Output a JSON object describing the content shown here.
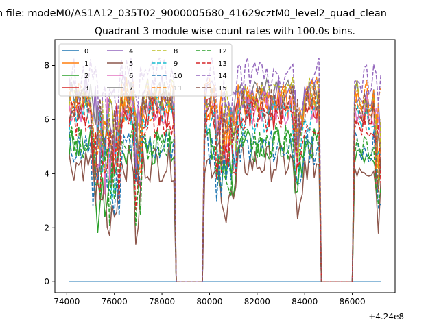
{
  "suptitle": "n file: modeM0/AS1A12_035T02_9000005680_41629cztM0_level2_quad_clean",
  "chart_data": {
    "type": "line",
    "title": "Quadrant 3 module wise count rates with 100.0s bins.",
    "xlabel": "",
    "ylabel": "",
    "x_offset_label": "+4.24e8",
    "xlim": [
      73500,
      87800
    ],
    "ylim": [
      -0.4,
      8.95
    ],
    "xticks": [
      74000,
      76000,
      78000,
      80000,
      82000,
      84000,
      86000
    ],
    "xtick_labels": [
      "74000",
      "76000",
      "78000",
      "80000",
      "82000",
      "84000",
      "86000"
    ],
    "yticks": [
      0,
      2,
      4,
      6,
      8
    ],
    "ytick_labels": [
      "0",
      "2",
      "4",
      "6",
      "8"
    ],
    "grid": false,
    "legend_position": "top-left",
    "legend_columns": 4,
    "gaps": [
      [
        78500,
        79800
      ],
      [
        84600,
        86050
      ]
    ],
    "x_start": 74100,
    "x_end": 87200,
    "series": [
      {
        "name": "0",
        "color": "#1f77b4",
        "dash": "solid",
        "level": 0,
        "seed": 1
      },
      {
        "name": "1",
        "color": "#ff7f0e",
        "dash": "solid",
        "level": 6.6,
        "seed": 2
      },
      {
        "name": "2",
        "color": "#2ca02c",
        "dash": "solid",
        "level": 5.0,
        "seed": 3
      },
      {
        "name": "3",
        "color": "#d62728",
        "dash": "solid",
        "level": 6.3,
        "seed": 4
      },
      {
        "name": "4",
        "color": "#9467bd",
        "dash": "solid",
        "level": 7.0,
        "seed": 5
      },
      {
        "name": "5",
        "color": "#8c564b",
        "dash": "solid",
        "level": 4.4,
        "seed": 6
      },
      {
        "name": "6",
        "color": "#e377c2",
        "dash": "solid",
        "level": 6.5,
        "seed": 7
      },
      {
        "name": "7",
        "color": "#7f7f7f",
        "dash": "solid",
        "level": 6.8,
        "seed": 8
      },
      {
        "name": "8",
        "color": "#bcbd22",
        "dash": "dashed",
        "level": 6.9,
        "seed": 9
      },
      {
        "name": "9",
        "color": "#17becf",
        "dash": "dashed",
        "level": 6.2,
        "seed": 10
      },
      {
        "name": "10",
        "color": "#1f77b4",
        "dash": "dashed",
        "level": 5.0,
        "seed": 11
      },
      {
        "name": "11",
        "color": "#ff7f0e",
        "dash": "dashed",
        "level": 6.9,
        "seed": 12
      },
      {
        "name": "12",
        "color": "#2ca02c",
        "dash": "dashed",
        "level": 5.2,
        "seed": 13
      },
      {
        "name": "13",
        "color": "#d62728",
        "dash": "dashed",
        "level": 6.0,
        "seed": 14
      },
      {
        "name": "14",
        "color": "#9467bd",
        "dash": "dashed",
        "level": 7.6,
        "seed": 15
      },
      {
        "name": "15",
        "color": "#8c564b",
        "dash": "dashed",
        "level": 6.6,
        "seed": 16
      }
    ]
  }
}
